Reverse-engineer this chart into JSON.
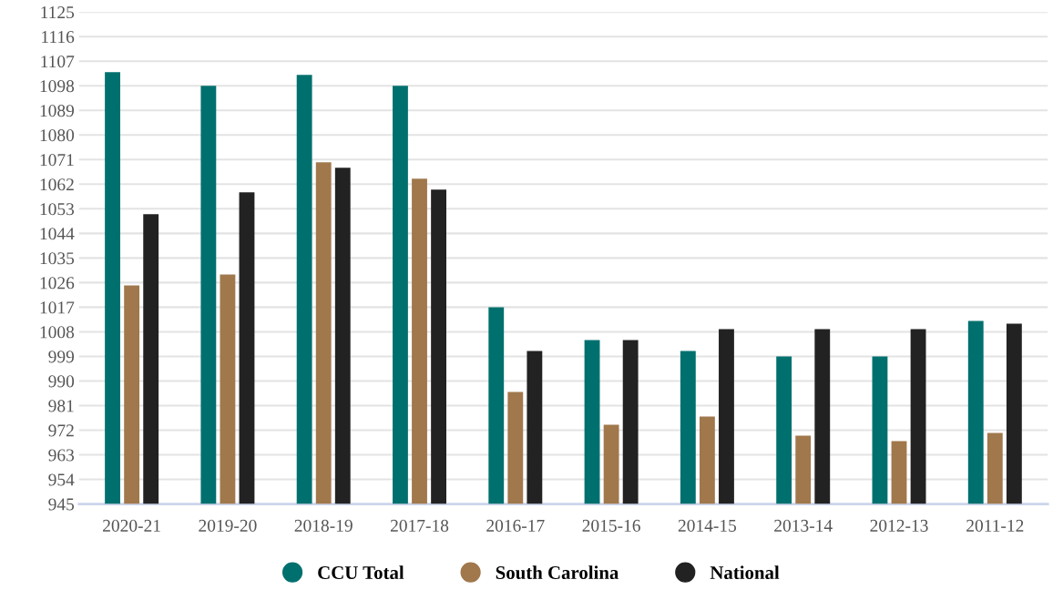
{
  "chart_data": {
    "type": "bar",
    "categories": [
      "2020-21",
      "2019-20",
      "2018-19",
      "2017-18",
      "2016-17",
      "2015-16",
      "2014-15",
      "2013-14",
      "2012-13",
      "2011-12"
    ],
    "series": [
      {
        "name": "CCU Total",
        "color": "#00706e",
        "values": [
          1103,
          1098,
          1102,
          1098,
          1017,
          1005,
          1001,
          999,
          999,
          1012
        ]
      },
      {
        "name": "South Carolina",
        "color": "#a0784c",
        "values": [
          1025,
          1029,
          1070,
          1064,
          986,
          974,
          977,
          970,
          968,
          971
        ]
      },
      {
        "name": "National",
        "color": "#222222",
        "values": [
          1051,
          1059,
          1068,
          1060,
          1001,
          1005,
          1009,
          1009,
          1009,
          1011
        ]
      }
    ],
    "ylim": [
      945,
      1125
    ],
    "yticks": [
      945,
      954,
      963,
      972,
      981,
      990,
      999,
      1008,
      1017,
      1026,
      1035,
      1044,
      1053,
      1062,
      1071,
      1080,
      1089,
      1098,
      1107,
      1116,
      1125
    ],
    "grid": "y",
    "legend": "bottom"
  }
}
